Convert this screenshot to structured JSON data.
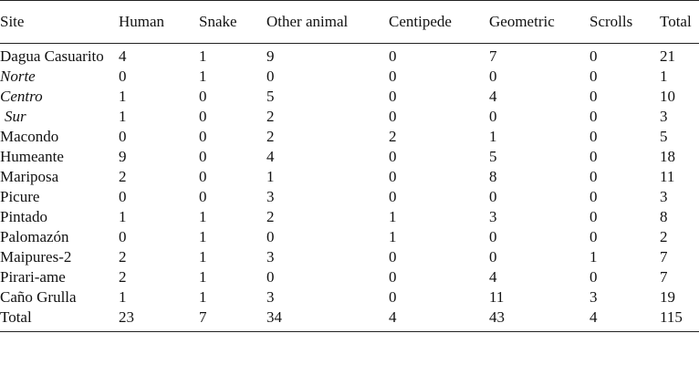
{
  "table": {
    "headers": [
      "Site",
      "Human",
      "Snake",
      "Other animal",
      "Centipede",
      "Geometric",
      "Scrolls",
      "Total"
    ],
    "rows": [
      {
        "site": "Dagua Casuarito",
        "style": "bold",
        "values": [
          "4",
          "1",
          "9",
          "0",
          "7",
          "0",
          "21"
        ]
      },
      {
        "site": "Norte",
        "style": "italic",
        "values": [
          "0",
          "1",
          "0",
          "0",
          "0",
          "0",
          "1"
        ]
      },
      {
        "site": "Centro",
        "style": "italic",
        "values": [
          "1",
          "0",
          "5",
          "0",
          "4",
          "0",
          "10"
        ]
      },
      {
        "site": "Sur",
        "style": "italic-indent",
        "values": [
          "1",
          "0",
          "2",
          "0",
          "0",
          "0",
          "3"
        ]
      },
      {
        "site": "Macondo",
        "style": "bold",
        "values": [
          "0",
          "0",
          "2",
          "2",
          "1",
          "0",
          "5"
        ]
      },
      {
        "site": "Humeante",
        "style": "bold",
        "values": [
          "9",
          "0",
          "4",
          "0",
          "5",
          "0",
          "18"
        ]
      },
      {
        "site": "Mariposa",
        "style": "bold",
        "values": [
          "2",
          "0",
          "1",
          "0",
          "8",
          "0",
          "11"
        ]
      },
      {
        "site": "Picure",
        "style": "bold",
        "values": [
          "0",
          "0",
          "3",
          "0",
          "0",
          "0",
          "3"
        ]
      },
      {
        "site": "Pintado",
        "style": "bold",
        "values": [
          "1",
          "1",
          "2",
          "1",
          "3",
          "0",
          "8"
        ]
      },
      {
        "site": "Palomazón",
        "style": "bold",
        "values": [
          "0",
          "1",
          "0",
          "1",
          "0",
          "0",
          "2"
        ]
      },
      {
        "site": "Maipures-2",
        "style": "bold",
        "values": [
          "2",
          "1",
          "3",
          "0",
          "0",
          "1",
          "7"
        ]
      },
      {
        "site": "Pirari-ame",
        "style": "bold",
        "values": [
          "2",
          "1",
          "0",
          "0",
          "4",
          "0",
          "7"
        ]
      },
      {
        "site": "Caño Grulla",
        "style": "bold",
        "values": [
          "1",
          "1",
          "3",
          "0",
          "11",
          "3",
          "19"
        ]
      },
      {
        "site": "Total",
        "style": "bold",
        "values": [
          "23",
          "7",
          "34",
          "4",
          "43",
          "4",
          "115"
        ]
      }
    ]
  }
}
